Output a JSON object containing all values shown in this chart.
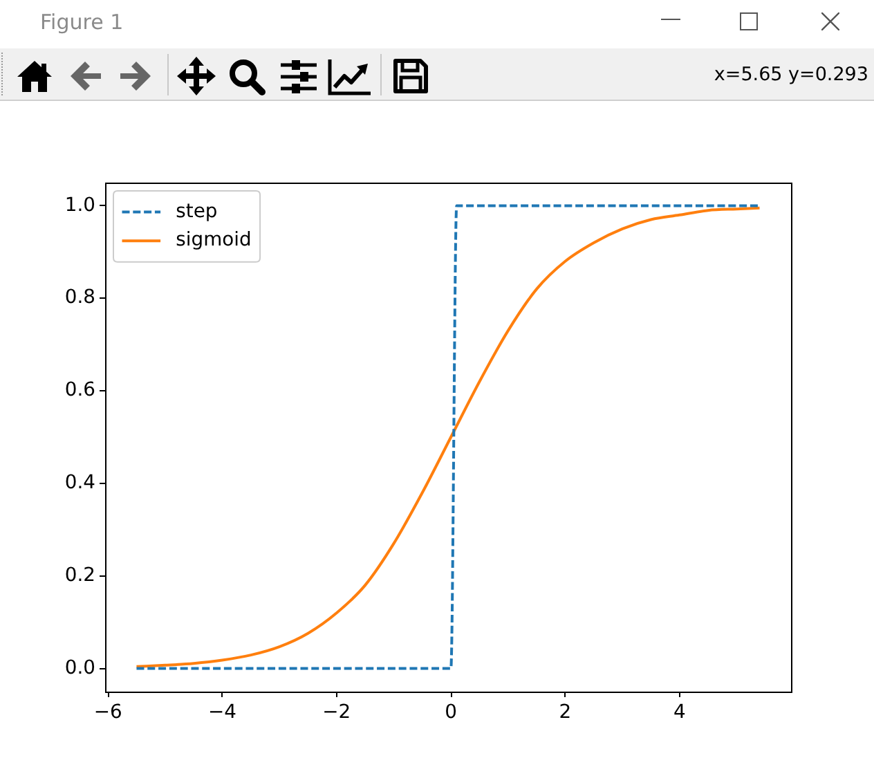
{
  "chart_data": {
    "type": "line",
    "x": [
      -5.5,
      -5,
      -4.5,
      -4,
      -3.5,
      -3,
      -2.5,
      -2,
      -1.5,
      -1,
      -0.5,
      0,
      0.5,
      1,
      1.5,
      2,
      2.5,
      3,
      3.5,
      4,
      4.5,
      5,
      5.4
    ],
    "series": [
      {
        "name": "step",
        "color": "#1f77b4",
        "line_style": "dashed",
        "x": [
          -5.5,
          0,
          0.1,
          5.4
        ],
        "values": [
          0,
          0,
          1,
          1
        ]
      },
      {
        "name": "sigmoid",
        "color": "#ff7f0e",
        "line_style": "solid",
        "values": [
          0.004,
          0.007,
          0.011,
          0.018,
          0.029,
          0.047,
          0.076,
          0.12,
          0.18,
          0.27,
          0.38,
          0.5,
          0.62,
          0.73,
          0.82,
          0.88,
          0.92,
          0.95,
          0.97,
          0.98,
          0.99,
          0.993,
          0.995
        ]
      }
    ],
    "xlim": [
      -6.05,
      5.95
    ],
    "ylim": [
      -0.05,
      1.05
    ],
    "xticks": [
      {
        "value": -6,
        "label": "−6"
      },
      {
        "value": -4,
        "label": "−4"
      },
      {
        "value": -2,
        "label": "−2"
      },
      0,
      2,
      4
    ],
    "yticks": [
      {
        "value": 0,
        "label": "0.0"
      },
      {
        "value": 0.2,
        "label": "0.2"
      },
      {
        "value": 0.4,
        "label": "0.4"
      },
      {
        "value": 0.6,
        "label": "0.6"
      },
      {
        "value": 0.8,
        "label": "0.8"
      },
      {
        "value": 1,
        "label": "1.0"
      }
    ],
    "legend": "top left",
    "annotations": [
      "Figure 1",
      "x=5.65 y=0.293"
    ]
  }
}
